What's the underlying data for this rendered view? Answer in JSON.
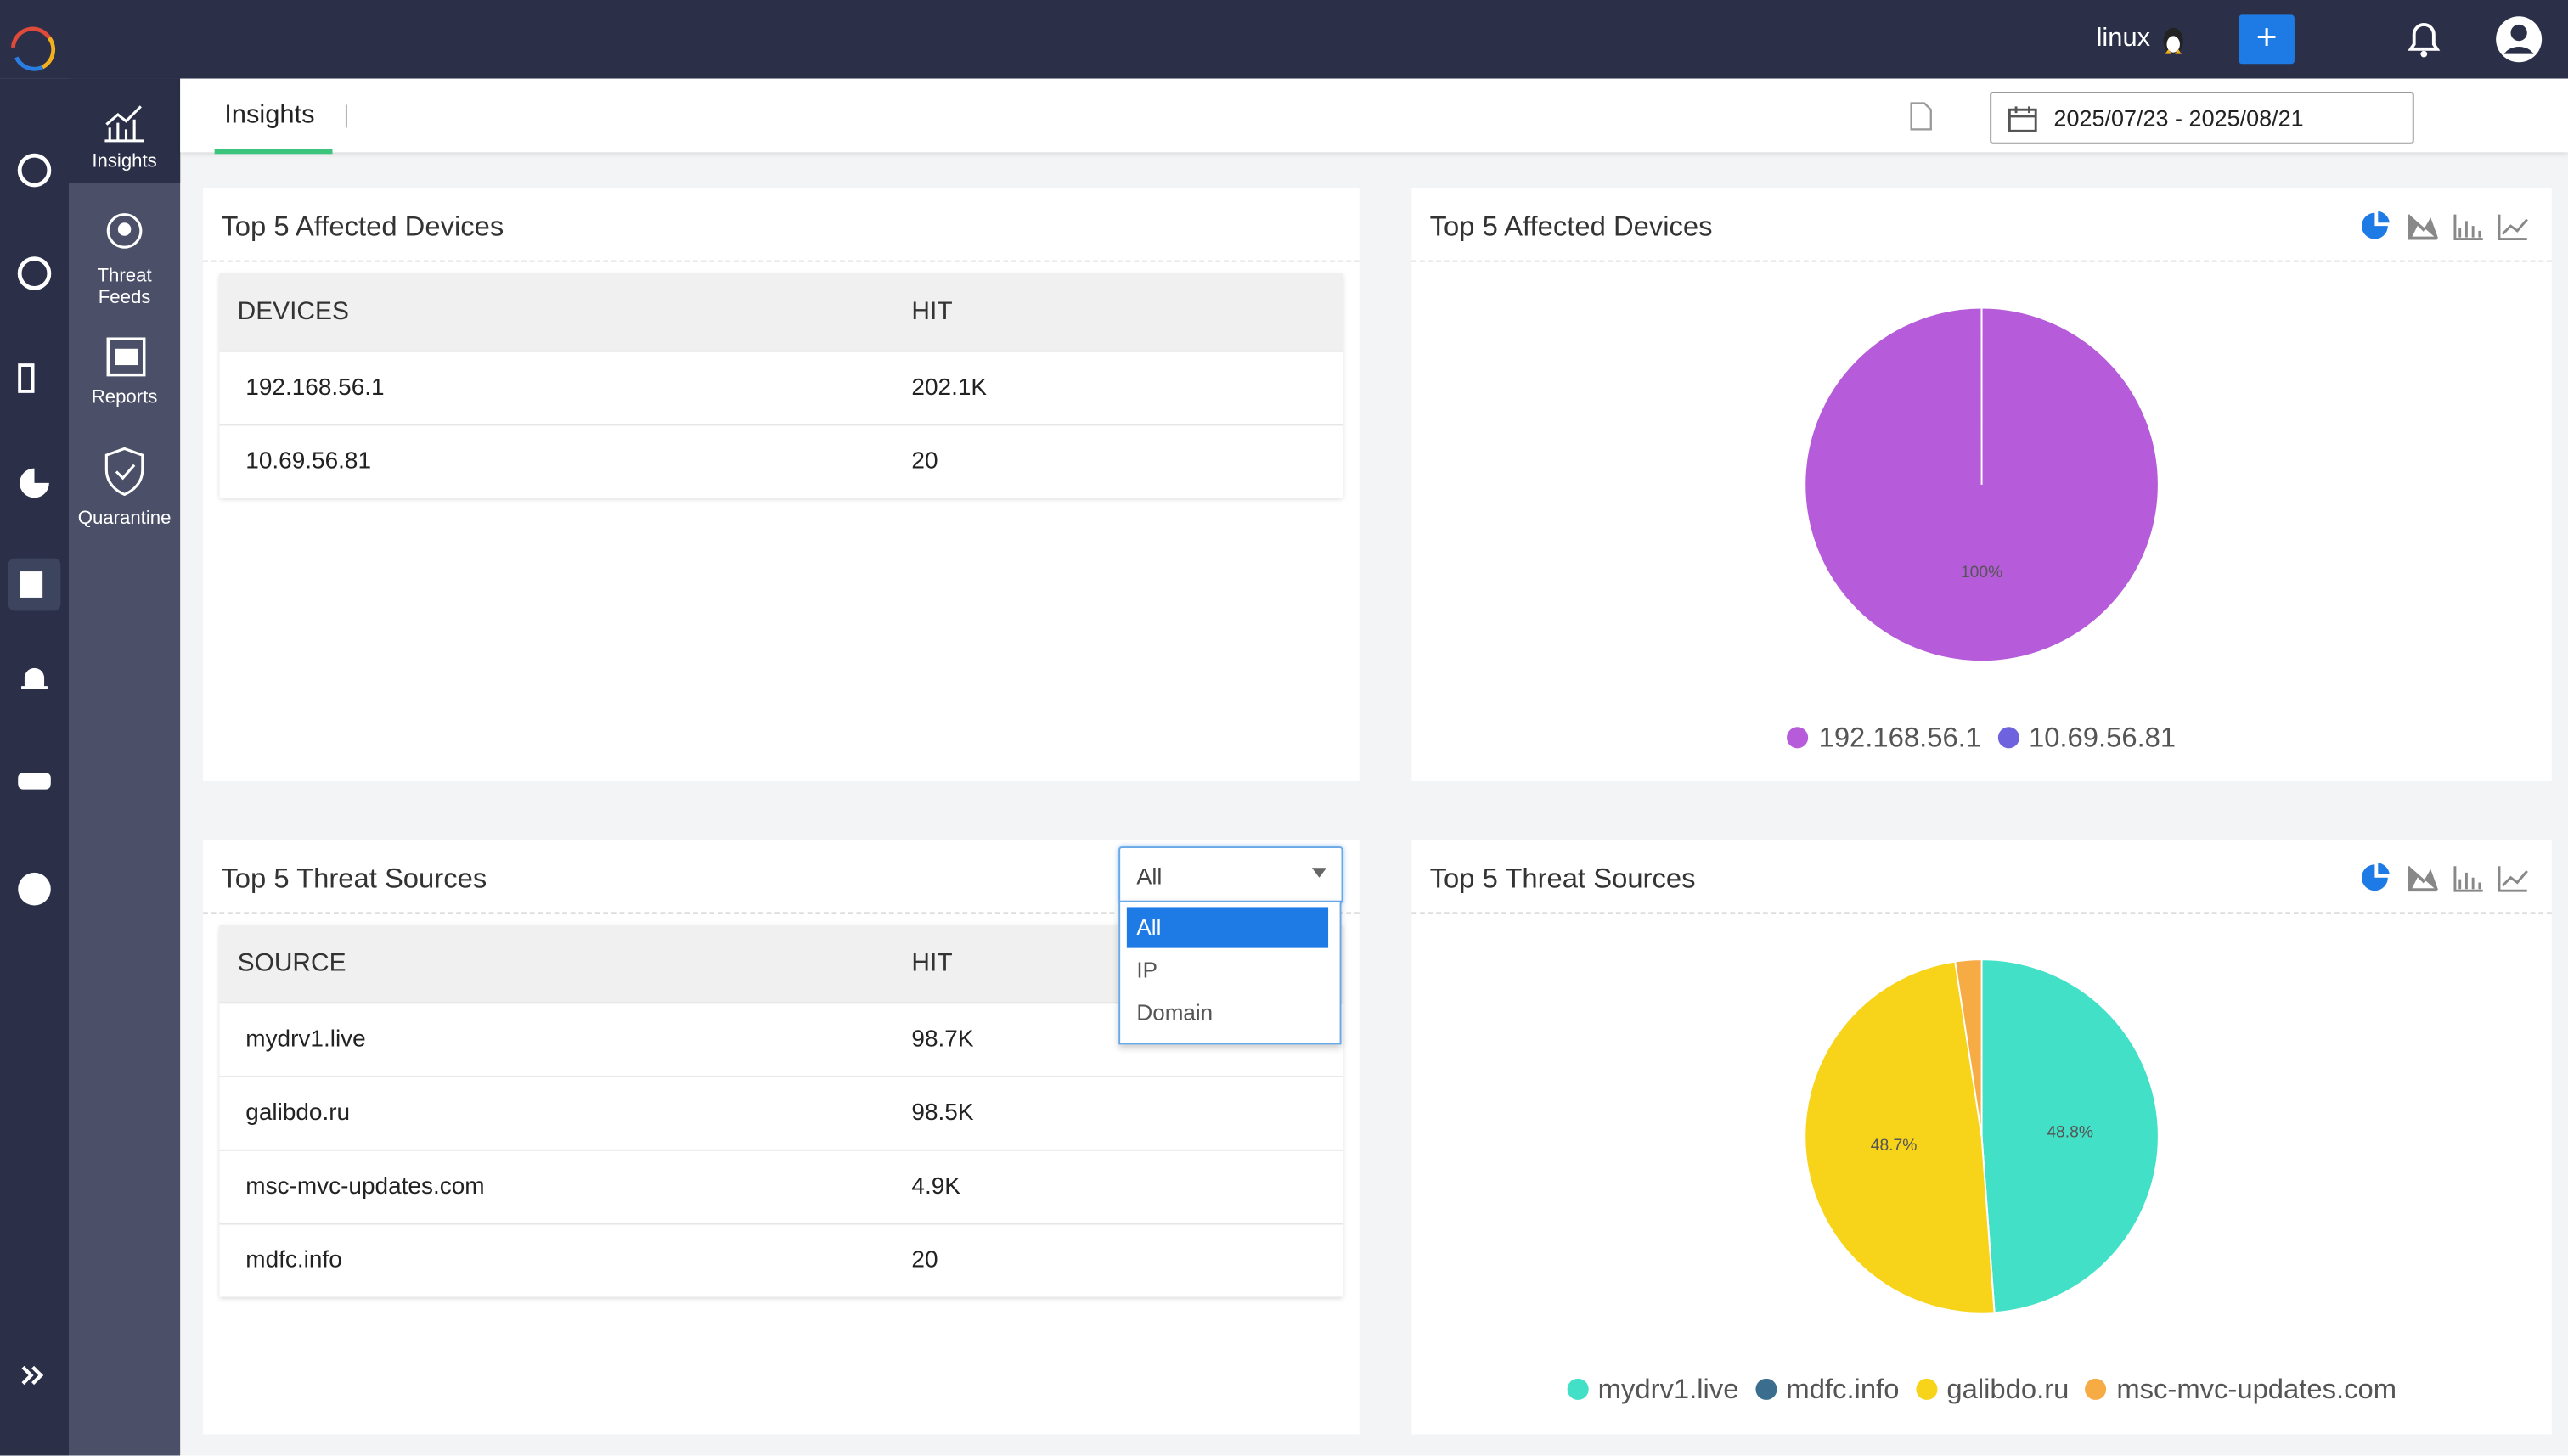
{
  "header": {
    "user": "linux"
  },
  "sidebar": {
    "items": [
      "Insights",
      "Threat Feeds",
      "Reports",
      "Quarantine"
    ]
  },
  "tab": "Insights",
  "date_range": "2025/07/23 - 2025/08/21",
  "devices_table": {
    "title": "Top 5 Affected Devices",
    "columns": [
      "DEVICES",
      "HIT"
    ],
    "rows": [
      [
        "192.168.56.1",
        "202.1K"
      ],
      [
        "10.69.56.81",
        "20"
      ]
    ]
  },
  "sources_table": {
    "title": "Top 5 Threat Sources",
    "filter": {
      "selected": "All",
      "options": [
        "All",
        "IP",
        "Domain"
      ]
    },
    "columns": [
      "SOURCE",
      "HIT"
    ],
    "rows": [
      [
        "mydrv1.live",
        "98.7K"
      ],
      [
        "galibdo.ru",
        "98.5K"
      ],
      [
        "msc-mvc-updates.com",
        "4.9K"
      ],
      [
        "mdfc.info",
        "20"
      ]
    ]
  },
  "chart_data": [
    {
      "type": "pie",
      "title": "Top 5 Affected Devices",
      "categories": [
        "192.168.56.1",
        "10.69.56.81"
      ],
      "values": [
        100,
        0.01
      ],
      "value_labels": [
        "100%",
        null
      ],
      "colors": [
        "#b65bd9",
        "#6f62de"
      ]
    },
    {
      "type": "pie",
      "title": "Top 5 Threat Sources",
      "categories": [
        "mydrv1.live",
        "mdfc.info",
        "galibdo.ru",
        "msc-mvc-updates.com"
      ],
      "values": [
        48.8,
        0.01,
        48.7,
        2.4
      ],
      "value_labels": [
        "48.8%",
        null,
        "48.7%",
        null
      ],
      "colors": [
        "#42e0c6",
        "#3b6e8e",
        "#f7d31a",
        "#f6ab45"
      ]
    }
  ]
}
